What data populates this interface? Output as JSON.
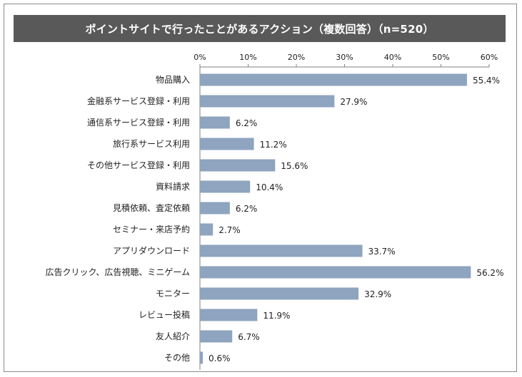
{
  "chart_data": {
    "type": "bar",
    "orientation": "horizontal",
    "title": "ポイントサイトで行ったことがあるアクション（複数回答）（n=520）",
    "categories": [
      "物品購入",
      "金融系サービス登録・利用",
      "通信系サービス登録・利用",
      "旅行系サービス利用",
      "その他サービス登録・利用",
      "資料請求",
      "見積依頼、査定依頼",
      "セミナー・来店予約",
      "アプリダウンロード",
      "広告クリック、広告視聴、ミニゲーム",
      "モニター",
      "レビュー投稿",
      "友人紹介",
      "その他"
    ],
    "values": [
      55.4,
      27.9,
      6.2,
      11.2,
      15.6,
      10.4,
      6.2,
      2.7,
      33.7,
      56.2,
      32.9,
      11.9,
      6.7,
      0.6
    ],
    "value_labels": [
      "55.4%",
      "27.9%",
      "6.2%",
      "11.2%",
      "15.6%",
      "10.4%",
      "6.2%",
      "2.7%",
      "33.7%",
      "56.2%",
      "32.9%",
      "11.9%",
      "6.7%",
      "0.6%"
    ],
    "xticks": [
      0,
      10,
      20,
      30,
      40,
      50,
      60
    ],
    "xtick_labels": [
      "0%",
      "10%",
      "20%",
      "30%",
      "40%",
      "50%",
      "60%"
    ],
    "xlim": [
      0,
      60
    ],
    "xaxis_position": "top",
    "grid": false,
    "legend": false,
    "bar_color": "#8ea4bf",
    "title_bg_color": "#595959",
    "title_text_color": "#ffffff"
  }
}
